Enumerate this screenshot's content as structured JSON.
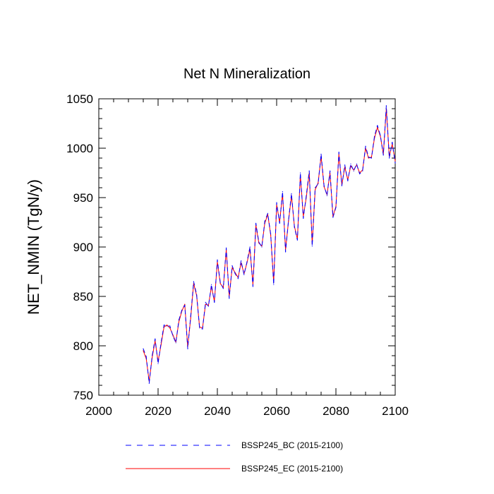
{
  "chart_data": {
    "type": "line",
    "title": "Net N Mineralization",
    "xlabel": "",
    "ylabel": "NET_NMIN  (TgN/y)",
    "xlim": [
      2000,
      2100
    ],
    "ylim": [
      750,
      1050
    ],
    "xticks": [
      2000,
      2020,
      2040,
      2060,
      2080,
      2100
    ],
    "yticks": [
      750,
      800,
      850,
      900,
      950,
      1000,
      1050
    ],
    "xtick_labels": [
      "2000",
      "2020",
      "2040",
      "2060",
      "2080",
      "2100"
    ],
    "ytick_labels": [
      "750",
      "800",
      "850",
      "900",
      "950",
      "1000",
      "1050"
    ],
    "grid": false,
    "legend_position": "bottom",
    "x": [
      2015,
      2016,
      2017,
      2018,
      2019,
      2020,
      2021,
      2022,
      2023,
      2024,
      2025,
      2026,
      2027,
      2028,
      2029,
      2030,
      2031,
      2032,
      2033,
      2034,
      2035,
      2036,
      2037,
      2038,
      2039,
      2040,
      2041,
      2042,
      2043,
      2044,
      2045,
      2046,
      2047,
      2048,
      2049,
      2050,
      2051,
      2052,
      2053,
      2054,
      2055,
      2056,
      2057,
      2058,
      2059,
      2060,
      2061,
      2062,
      2063,
      2064,
      2065,
      2066,
      2067,
      2068,
      2069,
      2070,
      2071,
      2072,
      2073,
      2074,
      2075,
      2076,
      2077,
      2078,
      2079,
      2080,
      2081,
      2082,
      2083,
      2084,
      2085,
      2086,
      2087,
      2088,
      2089,
      2090,
      2091,
      2092,
      2093,
      2094,
      2095,
      2096,
      2097,
      2098,
      2099,
      2100
    ],
    "series": [
      {
        "name": "BSSP245_BC (2015-2100)",
        "color": "#0000ff",
        "style": "dashed",
        "values": [
          797,
          789,
          762,
          790,
          807,
          782,
          803,
          821,
          820,
          820,
          810,
          803,
          826,
          836,
          841,
          797,
          830,
          865,
          852,
          818,
          817,
          844,
          840,
          862,
          844,
          887,
          864,
          858,
          899,
          848,
          881,
          873,
          868,
          886,
          872,
          885,
          900,
          860,
          924,
          905,
          900,
          926,
          934,
          913,
          862,
          945,
          924,
          956,
          895,
          927,
          954,
          920,
          907,
          975,
          929,
          952,
          977,
          901,
          960,
          964,
          994,
          962,
          952,
          977,
          930,
          940,
          996,
          962,
          983,
          967,
          984,
          977,
          984,
          974,
          977,
          1002,
          991,
          990,
          1012,
          1023,
          1013,
          993,
          1043,
          990,
          1006,
          985
        ]
      },
      {
        "name": "BSSP245_EC (2015-2100)",
        "color": "#ff0000",
        "style": "solid",
        "values": [
          795,
          787,
          764,
          788,
          805,
          784,
          801,
          819,
          821,
          818,
          811,
          804,
          824,
          835,
          842,
          799,
          828,
          863,
          851,
          819,
          818,
          842,
          841,
          860,
          845,
          885,
          863,
          859,
          897,
          850,
          879,
          874,
          869,
          884,
          873,
          884,
          898,
          862,
          922,
          904,
          901,
          924,
          933,
          912,
          864,
          943,
          925,
          954,
          897,
          926,
          952,
          921,
          908,
          973,
          931,
          950,
          975,
          903,
          958,
          965,
          992,
          961,
          953,
          975,
          931,
          941,
          994,
          963,
          981,
          968,
          982,
          978,
          983,
          975,
          978,
          1000,
          990,
          991,
          1010,
          1021,
          1012,
          994,
          1040,
          992,
          1004,
          987
        ]
      }
    ]
  }
}
